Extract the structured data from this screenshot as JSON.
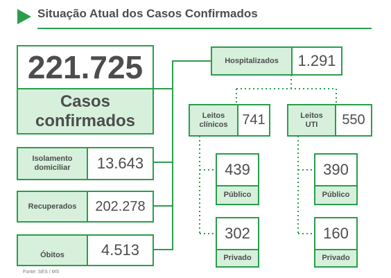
{
  "title": "Situação Atual dos Casos Confirmados",
  "confirmed": {
    "value": "221.725",
    "label": "Casos confirmados"
  },
  "isolamento": {
    "label": "Isolamento domiciliar",
    "value": "13.643"
  },
  "recuperados": {
    "label": "Recuperados",
    "value": "202.278"
  },
  "obitos": {
    "label": "Óbitos",
    "value": "4.513"
  },
  "hospitalizados": {
    "label": "Hospitalizados",
    "value": "1.291"
  },
  "leitos_clinicos": {
    "label": "Leitos clínicos",
    "value": "741",
    "publico": {
      "value": "439",
      "label": "Público"
    },
    "privado": {
      "value": "302",
      "label": "Privado"
    }
  },
  "leitos_uti": {
    "label": "Leitos UTI",
    "value": "550",
    "publico": {
      "value": "390",
      "label": "Público"
    },
    "privado": {
      "value": "160",
      "label": "Privado"
    }
  },
  "source": "Fonte: SES / MS",
  "colors": {
    "accent": "#2a9d4c",
    "fill": "#d6f0dc",
    "text": "#4d4d4d"
  }
}
